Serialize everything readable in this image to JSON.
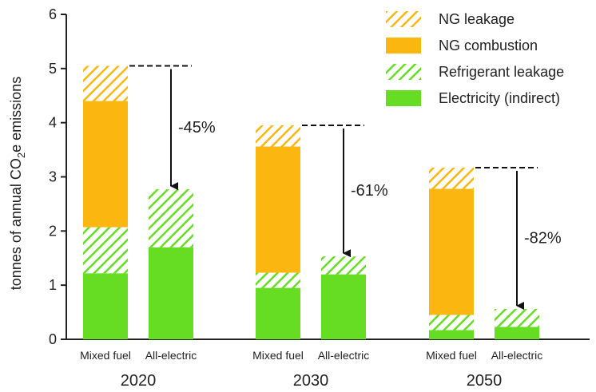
{
  "chart_data": {
    "type": "bar",
    "stacked": true,
    "ylabel_parts": [
      "tonnes of annual CO",
      "2",
      "e emissions"
    ],
    "ylim": [
      0,
      6
    ],
    "yticks": [
      "0",
      "1",
      "2",
      "3",
      "4",
      "5",
      "6"
    ],
    "legend_position": "top-right",
    "series": [
      {
        "name": "Electricity (indirect)",
        "color": "#66dd22",
        "pattern": "solid"
      },
      {
        "name": "Refrigerant leakage",
        "color": "#66dd22",
        "pattern": "hatch"
      },
      {
        "name": "NG combustion",
        "color": "#fbb710",
        "pattern": "solid"
      },
      {
        "name": "NG leakage",
        "color": "#fbb710",
        "pattern": "hatch"
      }
    ],
    "legend_order": [
      "NG leakage",
      "NG combustion",
      "Refrigerant leakage",
      "Electricity (indirect)"
    ],
    "groups": [
      {
        "year": "2020",
        "reduction_label": "-45%",
        "bars": [
          {
            "label": "Mixed fuel",
            "values": [
              1.22,
              0.85,
              2.33,
              0.65
            ]
          },
          {
            "label": "All-electric",
            "values": [
              1.7,
              1.07,
              0,
              0
            ]
          }
        ]
      },
      {
        "year": "2030",
        "reduction_label": "-61%",
        "bars": [
          {
            "label": "Mixed fuel",
            "values": [
              0.95,
              0.28,
              2.33,
              0.39
            ]
          },
          {
            "label": "All-electric",
            "values": [
              1.2,
              0.33,
              0,
              0
            ]
          }
        ]
      },
      {
        "year": "2050",
        "reduction_label": "-82%",
        "bars": [
          {
            "label": "Mixed fuel",
            "values": [
              0.17,
              0.28,
              2.33,
              0.39
            ]
          },
          {
            "label": "All-electric",
            "values": [
              0.23,
              0.33,
              0,
              0
            ]
          }
        ]
      }
    ]
  }
}
